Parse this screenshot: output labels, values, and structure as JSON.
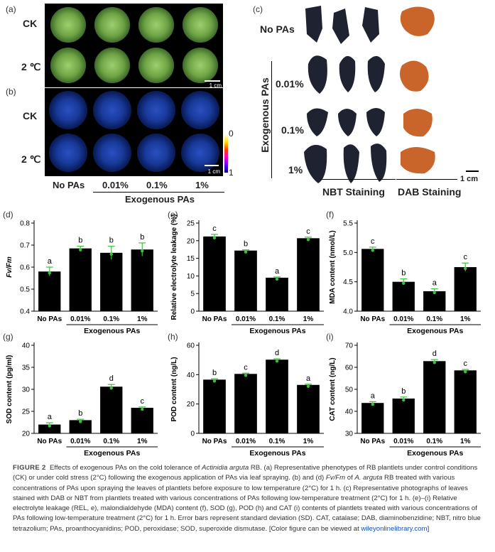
{
  "figure": {
    "panel_letters": [
      "(a)",
      "(b)",
      "(c)",
      "(d)",
      "(e)",
      "(f)",
      "(g)",
      "(h)",
      "(i)"
    ],
    "photo_rows": [
      "CK",
      "2 ℃"
    ],
    "scale_bar": "1 cm",
    "cols": [
      "No PAs",
      "0.01%",
      "0.1%",
      "1%"
    ],
    "group_label": "Exogenous PAs",
    "colorbar": {
      "top": "0",
      "bottom": "1"
    },
    "panel_c": {
      "rows": [
        "No PAs",
        "0.01%",
        "0.1%",
        "1%"
      ],
      "side_label": "Exogenous PAs",
      "x_labels": [
        "NBT Staining",
        "DAB Staining"
      ],
      "scale": "1 cm"
    }
  },
  "chart_data": [
    {
      "type": "bar",
      "panel": "(d)",
      "categories": [
        "No PAs",
        "0.01%",
        "0.1%",
        "1%"
      ],
      "values": [
        0.58,
        0.685,
        0.665,
        0.68
      ],
      "errors": [
        0.02,
        0.01,
        0.03,
        0.03
      ],
      "letters": [
        "a",
        "b",
        "b",
        "b"
      ],
      "ylabel": "Fv/Fm",
      "ylim": [
        0.4,
        0.8
      ],
      "yticks": [
        "0.4",
        "0.5",
        "0.6",
        "0.7",
        "0.8"
      ],
      "group": "Exogenous PAs"
    },
    {
      "type": "bar",
      "panel": "(e)",
      "categories": [
        "No PAs",
        "0.01%",
        "0.1%",
        "1%"
      ],
      "values": [
        21.2,
        17.2,
        9.5,
        20.7
      ],
      "errors": [
        0.6,
        0.2,
        0.2,
        0.3
      ],
      "letters": [
        "c",
        "b",
        "a",
        "c"
      ],
      "ylabel": "Relative electrolyte leakage (%)",
      "ylim": [
        0,
        25
      ],
      "yticks": [
        "0",
        "5",
        "10",
        "15",
        "20",
        "25"
      ],
      "group": "Exogenous PAs"
    },
    {
      "type": "bar",
      "panel": "(f)",
      "categories": [
        "No PAs",
        "0.01%",
        "0.1%",
        "1%"
      ],
      "values": [
        5.06,
        4.5,
        4.34,
        4.75
      ],
      "errors": [
        0.03,
        0.05,
        0.04,
        0.07
      ],
      "letters": [
        "c",
        "b",
        "a",
        "c"
      ],
      "ylabel": "MDA content (nmol/L)",
      "ylim": [
        4.0,
        5.5
      ],
      "yticks": [
        "4.0",
        "4.5",
        "5.0",
        "5.5"
      ],
      "group": "Exogenous PAs"
    },
    {
      "type": "bar",
      "panel": "(g)",
      "categories": [
        "No PAs",
        "0.01%",
        "0.1%",
        "1%"
      ],
      "values": [
        22.0,
        23.0,
        30.6,
        25.8
      ],
      "errors": [
        0.4,
        0.2,
        0.5,
        0.2
      ],
      "letters": [
        "a",
        "b",
        "d",
        "c"
      ],
      "ylabel": "SOD content (pg/ml)",
      "ylim": [
        20,
        40
      ],
      "yticks": [
        "20",
        "25",
        "30",
        "35",
        "40"
      ],
      "group": "Exogenous PAs"
    },
    {
      "type": "bar",
      "panel": "(h)",
      "categories": [
        "No PAs",
        "0.01%",
        "0.1%",
        "1%"
      ],
      "values": [
        36.6,
        40.5,
        50.2,
        33.0
      ],
      "errors": [
        0.6,
        0.5,
        0.6,
        0.5
      ],
      "letters": [
        "b",
        "c",
        "d",
        "a"
      ],
      "ylabel": "POD content (ng/L)",
      "ylim": [
        0,
        60
      ],
      "yticks": [
        "0",
        "20",
        "40",
        "60"
      ],
      "group": "Exogenous PAs"
    },
    {
      "type": "bar",
      "panel": "(i)",
      "categories": [
        "No PAs",
        "0.01%",
        "0.1%",
        "1%"
      ],
      "values": [
        43.8,
        45.8,
        62.8,
        58.6
      ],
      "errors": [
        0.6,
        0.7,
        0.7,
        0.4
      ],
      "letters": [
        "a",
        "b",
        "d",
        "c"
      ],
      "ylabel": "CAT content (ng/L)",
      "ylim": [
        30,
        70
      ],
      "yticks": [
        "30",
        "40",
        "50",
        "60",
        "70"
      ],
      "group": "Exogenous PAs"
    }
  ],
  "caption": {
    "label": "FIGURE 2",
    "p1": "Effects of exogenous PAs on the cold tolerance of ",
    "species": "Actinidia arguta",
    "p2": " RB. (a) Representative phenotypes of RB plantlets under control conditions (CK) or under cold stress (2°C) following the exogenous application of PAs via leaf spraying. (b) and (d) ",
    "fvfm": "Fv/Fm",
    "p3": " of ",
    "species2": "A. arguta",
    "p4": " RB treated with various concentrations of PAs upon spraying the leaves of plantlets before exposure to low temperature (2°C) for 1 h. (c) Representative photographs of leaves stained with DAB or NBT from plantlets treated with various concentrations of PAs following low-temperature treatment (2°C) for 1 h. (e)–(i) Relative electrolyte leakage (REL, e), malondialdehyde (MDA) content (f), SOD (g), POD (h) and CAT (i) contents of plantlets treated with various concentrations of PAs following low-temperature treatment (2°C) for 1 h. Error bars represent standard deviation (SD). CAT, catalase; DAB, diaminobenzidine; NBT, nitro blue tetrazolium; PAs, proanthocyanidins; POD, peroxidase; SOD, superoxide dismutase. [Color figure can be viewed at ",
    "link": "wileyonlinelibrary.com",
    "p5": "]"
  }
}
